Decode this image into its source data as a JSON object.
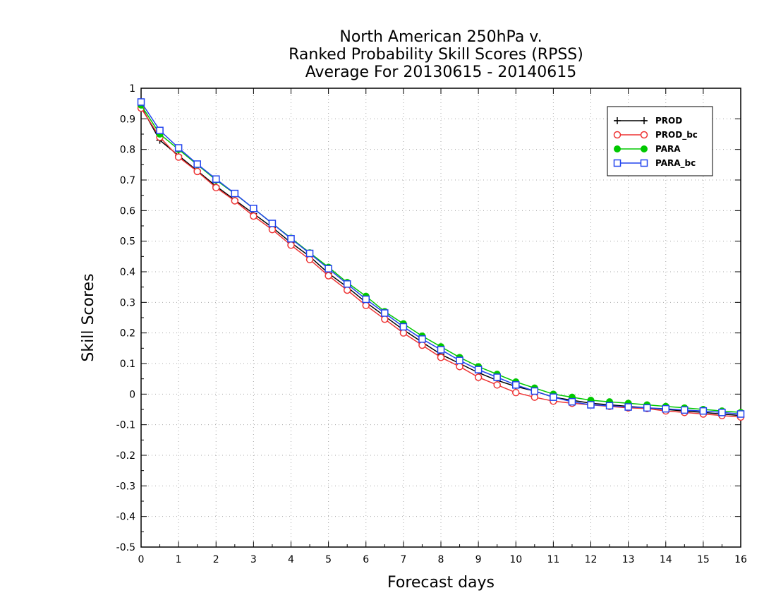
{
  "chart_data": {
    "type": "line",
    "title_lines": [
      "North American 250hPa v.",
      "Ranked Probability Skill Scores (RPSS)",
      "Average For 20130615 - 20140615"
    ],
    "xlabel": "Forecast days",
    "ylabel": "Skill Scores",
    "xlim": [
      0,
      16
    ],
    "ylim": [
      -0.5,
      1
    ],
    "x_ticks": [
      "0",
      "1",
      "2",
      "3",
      "4",
      "5",
      "6",
      "7",
      "8",
      "9",
      "10",
      "11",
      "12",
      "13",
      "14",
      "15",
      "16"
    ],
    "y_ticks": [
      "1",
      "0.9",
      "0.8",
      "0.7",
      "0.6",
      "0.5",
      "0.4",
      "0.3",
      "0.2",
      "0.1",
      "0",
      "-0.1",
      "-0.2",
      "-0.3",
      "-0.4",
      "-0.5"
    ],
    "grid": true,
    "legend_position": "top-right",
    "x": [
      0,
      0.5,
      1,
      1.5,
      2,
      2.5,
      3,
      3.5,
      4,
      4.5,
      5,
      5.5,
      6,
      6.5,
      7,
      7.5,
      8,
      8.5,
      9,
      9.5,
      10,
      10.5,
      11,
      11.5,
      12,
      12.5,
      13,
      13.5,
      14,
      14.5,
      15,
      15.5,
      16
    ],
    "series": [
      {
        "name": "PROD",
        "color": "#000000",
        "marker": "plus",
        "values": [
          0.94,
          0.83,
          0.78,
          0.73,
          0.68,
          0.635,
          0.59,
          0.545,
          0.495,
          0.45,
          0.395,
          0.35,
          0.3,
          0.255,
          0.21,
          0.17,
          0.13,
          0.1,
          0.07,
          0.045,
          0.025,
          0.01,
          -0.01,
          -0.02,
          -0.03,
          -0.035,
          -0.04,
          -0.045,
          -0.05,
          -0.055,
          -0.06,
          -0.065,
          -0.07
        ]
      },
      {
        "name": "PROD_bc",
        "color": "#ee3333",
        "marker": "circle-open",
        "values": [
          0.935,
          0.84,
          0.775,
          0.728,
          0.675,
          0.632,
          0.582,
          0.538,
          0.487,
          0.44,
          0.387,
          0.34,
          0.29,
          0.245,
          0.2,
          0.16,
          0.12,
          0.09,
          0.055,
          0.03,
          0.005,
          -0.01,
          -0.023,
          -0.03,
          -0.035,
          -0.04,
          -0.045,
          -0.047,
          -0.055,
          -0.06,
          -0.065,
          -0.07,
          -0.075
        ]
      },
      {
        "name": "PARA",
        "color": "#00c800",
        "marker": "circle-filled",
        "values": [
          0.945,
          0.85,
          0.8,
          0.75,
          0.7,
          0.655,
          0.607,
          0.558,
          0.51,
          0.462,
          0.415,
          0.365,
          0.32,
          0.27,
          0.23,
          0.19,
          0.155,
          0.12,
          0.09,
          0.065,
          0.04,
          0.02,
          0.0,
          -0.01,
          -0.02,
          -0.025,
          -0.03,
          -0.035,
          -0.04,
          -0.045,
          -0.05,
          -0.055,
          -0.06
        ]
      },
      {
        "name": "PARA_bc",
        "color": "#2244ee",
        "marker": "square-open",
        "values": [
          0.955,
          0.862,
          0.805,
          0.752,
          0.703,
          0.656,
          0.607,
          0.558,
          0.508,
          0.46,
          0.41,
          0.36,
          0.31,
          0.265,
          0.22,
          0.18,
          0.145,
          0.11,
          0.08,
          0.055,
          0.03,
          0.01,
          -0.01,
          -0.025,
          -0.035,
          -0.038,
          -0.042,
          -0.045,
          -0.048,
          -0.052,
          -0.055,
          -0.06,
          -0.065
        ]
      }
    ]
  }
}
